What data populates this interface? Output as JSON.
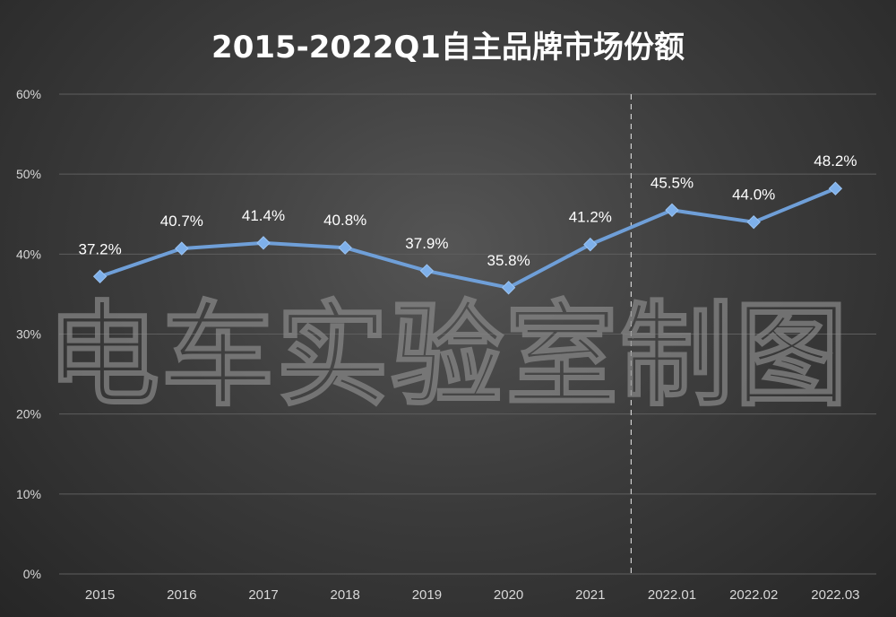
{
  "chart_data": {
    "type": "line",
    "title": "2015-2022Q1自主品牌市场份额",
    "categories": [
      "2015",
      "2016",
      "2017",
      "2018",
      "2019",
      "2020",
      "2021",
      "2022.01",
      "2022.02",
      "2022.03"
    ],
    "series": [
      {
        "values": [
          37.2,
          40.7,
          41.4,
          40.8,
          37.9,
          35.8,
          41.2,
          45.5,
          44.0,
          48.2
        ]
      }
    ],
    "data_labels": [
      "37.2%",
      "40.7%",
      "41.4%",
      "40.8%",
      "37.9%",
      "35.8%",
      "41.2%",
      "45.5%",
      "44.0%",
      "48.2%"
    ],
    "y_ticks": [
      "0%",
      "10%",
      "20%",
      "30%",
      "40%",
      "50%",
      "60%"
    ],
    "ylim": [
      0,
      60
    ],
    "xlabel": "",
    "ylabel": "",
    "grid": true,
    "legend": "none",
    "divider_between": [
      "2021",
      "2022.01"
    ],
    "watermark": "电车实验室制图",
    "colors": {
      "line": "#6f9fd8",
      "marker": "#7eb0ea",
      "text": "#ffffff",
      "tick_text": "#d8d8d8",
      "grid": "#5e5e5e"
    }
  }
}
